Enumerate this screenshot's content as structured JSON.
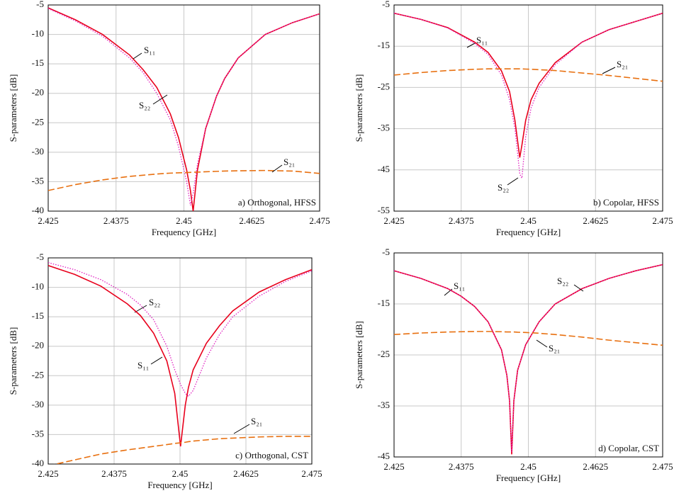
{
  "chart_data": [
    {
      "type": "line",
      "annotation": "a) Orthogonal, HFSS",
      "xlabel": "Frequency [GHz]",
      "ylabel": "S-parameters [dB]",
      "x": [
        2.425,
        2.43,
        2.435,
        2.44,
        2.4425,
        2.445,
        2.4475,
        2.449,
        2.4505,
        2.4512,
        2.4517,
        2.4525,
        2.454,
        2.456,
        2.4575,
        2.46,
        2.465,
        2.47,
        2.475
      ],
      "xlim": [
        2.425,
        2.475
      ],
      "xticks": [
        2.425,
        2.4375,
        2.45,
        2.4625,
        2.475
      ],
      "ylim": [
        -40,
        -5
      ],
      "yticks": [
        -5,
        -10,
        -15,
        -20,
        -25,
        -30,
        -35,
        -40
      ],
      "grid": true,
      "series": [
        {
          "name": "S₁₁",
          "color": "#e8001c",
          "style": "solid",
          "values": [
            -5.5,
            -7.5,
            -10,
            -13.5,
            -16,
            -19,
            -23.5,
            -27.5,
            -33,
            -36.5,
            -40,
            -33,
            -26,
            -20.5,
            -17.5,
            -14,
            -10,
            -8,
            -6.5
          ]
        },
        {
          "name": "S₂₂",
          "color": "#e020c0",
          "style": "dotted",
          "values": [
            -5.6,
            -7.7,
            -10.3,
            -14,
            -16.5,
            -20,
            -24.5,
            -29,
            -35,
            -39,
            -37,
            -32,
            -26,
            -20.5,
            -17.5,
            -14,
            -10,
            -8,
            -6.5
          ]
        },
        {
          "name": "S₂₁",
          "color": "#e87010",
          "style": "dashed",
          "values": [
            -36.5,
            -35.5,
            -34.7,
            -34.1,
            -33.9,
            -33.7,
            -33.55,
            -33.5,
            -33.45,
            -33.42,
            -33.4,
            -33.38,
            -33.32,
            -33.25,
            -33.2,
            -33.15,
            -33.1,
            -33.2,
            -33.6
          ]
        }
      ]
    },
    {
      "type": "line",
      "annotation": "b) Copolar, HFSS",
      "xlabel": "Frequency [GHz]",
      "ylabel": "S-parameters [dB]",
      "x": [
        2.425,
        2.43,
        2.435,
        2.44,
        2.4425,
        2.445,
        2.4465,
        2.4475,
        2.448,
        2.4484,
        2.4488,
        2.4495,
        2.4505,
        2.452,
        2.455,
        2.46,
        2.465,
        2.47,
        2.475
      ],
      "xlim": [
        2.425,
        2.475
      ],
      "xticks": [
        2.425,
        2.4375,
        2.45,
        2.4625,
        2.475
      ],
      "ylim": [
        -55,
        -5
      ],
      "yticks": [
        -5,
        -15,
        -25,
        -35,
        -45,
        -55
      ],
      "grid": true,
      "series": [
        {
          "name": "S₁₁",
          "color": "#e8001c",
          "style": "solid",
          "values": [
            -7,
            -8.5,
            -10.5,
            -14,
            -16.5,
            -21,
            -26,
            -33,
            -38,
            -42,
            -39,
            -33,
            -28,
            -24,
            -19,
            -14,
            -11,
            -9,
            -7
          ]
        },
        {
          "name": "S₂₂",
          "color": "#e020c0",
          "style": "dotted",
          "values": [
            -7,
            -8.5,
            -10.6,
            -14.3,
            -17,
            -22,
            -28,
            -35,
            -41,
            -46,
            -47,
            -37,
            -30,
            -25,
            -19.5,
            -14,
            -11,
            -9,
            -7
          ]
        },
        {
          "name": "S₂₁",
          "color": "#e87010",
          "style": "dashed",
          "values": [
            -22,
            -21.4,
            -20.9,
            -20.6,
            -20.5,
            -20.5,
            -20.5,
            -20.5,
            -20.5,
            -20.5,
            -20.5,
            -20.55,
            -20.6,
            -20.7,
            -20.9,
            -21.5,
            -22.1,
            -22.8,
            -23.5
          ]
        }
      ]
    },
    {
      "type": "line",
      "annotation": "c) Orthogonal, CST",
      "xlabel": "Frequency [GHz]",
      "ylabel": "S-parameters [dB]",
      "x": [
        2.425,
        2.43,
        2.435,
        2.44,
        2.4425,
        2.445,
        2.4475,
        2.449,
        2.4501,
        2.451,
        2.4516,
        2.4525,
        2.455,
        2.4575,
        2.46,
        2.465,
        2.47,
        2.475
      ],
      "xlim": [
        2.425,
        2.475
      ],
      "xticks": [
        2.425,
        2.4375,
        2.45,
        2.4625,
        2.475
      ],
      "ylim": [
        -40,
        -5
      ],
      "yticks": [
        -5,
        -10,
        -15,
        -20,
        -25,
        -30,
        -35,
        -40
      ],
      "grid": true,
      "series": [
        {
          "name": "S₂₂",
          "color": "#e020c0",
          "style": "dotted",
          "values": [
            -5.8,
            -7,
            -8.7,
            -11.2,
            -13,
            -15.5,
            -20,
            -24,
            -26.5,
            -28,
            -28.5,
            -27.5,
            -22,
            -18,
            -15,
            -11.5,
            -9,
            -7.2
          ]
        },
        {
          "name": "S₁₁",
          "color": "#e8001c",
          "style": "solid",
          "values": [
            -6.3,
            -7.8,
            -9.8,
            -12.8,
            -14.8,
            -17.8,
            -22.5,
            -28,
            -37,
            -30,
            -27,
            -24,
            -19.5,
            -16.5,
            -14,
            -10.8,
            -8.7,
            -7
          ]
        },
        {
          "name": "S₂₁",
          "color": "#e87010",
          "style": "dashed",
          "values": [
            -40.3,
            -39.3,
            -38.3,
            -37.6,
            -37.3,
            -37,
            -36.7,
            -36.5,
            -36.4,
            -36.3,
            -36.2,
            -36.1,
            -35.9,
            -35.7,
            -35.6,
            -35.4,
            -35.3,
            -35.3
          ]
        }
      ]
    },
    {
      "type": "line",
      "annotation": "d) Copolar, CST",
      "xlabel": "Frequency [GHz]",
      "ylabel": "S-parameters [dB]",
      "x": [
        2.425,
        2.43,
        2.435,
        2.4375,
        2.44,
        2.4425,
        2.445,
        2.446,
        2.4465,
        2.4469,
        2.4473,
        2.448,
        2.4495,
        2.452,
        2.455,
        2.46,
        2.4625,
        2.465,
        2.47,
        2.475
      ],
      "xlim": [
        2.425,
        2.475
      ],
      "xticks": [
        2.425,
        2.4375,
        2.45,
        2.4625,
        2.475
      ],
      "ylim": [
        -45,
        -5
      ],
      "yticks": [
        -5,
        -15,
        -25,
        -35,
        -45
      ],
      "grid": true,
      "series": [
        {
          "name": "S₁₁",
          "color": "#e8001c",
          "style": "solid",
          "values": [
            -8.5,
            -10,
            -12,
            -13.5,
            -15.5,
            -18.5,
            -24,
            -29,
            -34,
            -44.5,
            -34,
            -28,
            -23,
            -18.5,
            -15,
            -12,
            -11,
            -10,
            -8.5,
            -7.3
          ]
        },
        {
          "name": "S₂₂",
          "color": "#e020c0",
          "style": "dotted",
          "values": [
            -8.5,
            -10,
            -12,
            -13.5,
            -15.5,
            -18.5,
            -24,
            -29,
            -34,
            -44,
            -34,
            -28,
            -23,
            -18.5,
            -15,
            -12,
            -11,
            -10,
            -8.5,
            -7.3
          ]
        },
        {
          "name": "S₂₁",
          "color": "#e87010",
          "style": "dashed",
          "values": [
            -21,
            -20.7,
            -20.5,
            -20.45,
            -20.4,
            -20.4,
            -20.45,
            -20.5,
            -20.5,
            -20.5,
            -20.5,
            -20.55,
            -20.6,
            -20.75,
            -21,
            -21.5,
            -21.8,
            -22.1,
            -22.6,
            -23.1
          ]
        }
      ]
    }
  ]
}
